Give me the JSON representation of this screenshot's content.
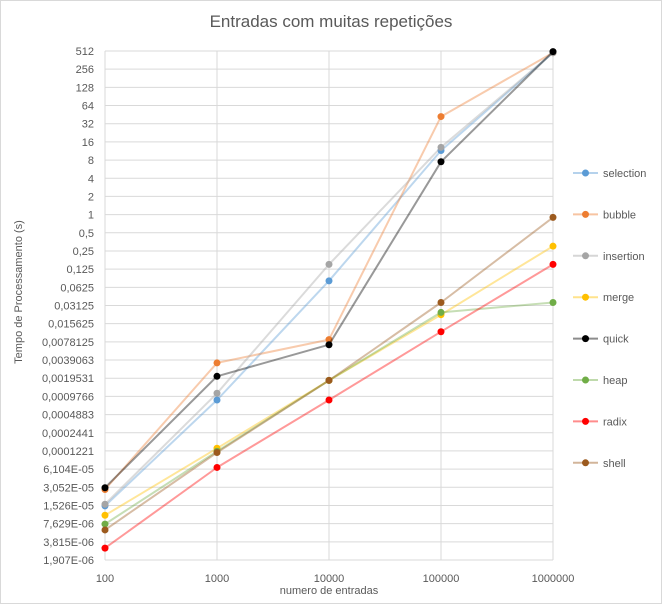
{
  "chart_data": {
    "type": "line",
    "title": "Entradas com muitas repetições",
    "xlabel": "numero de entradas",
    "ylabel": "Tempo de Processamento (s)",
    "x": [
      100,
      1000,
      10000,
      100000,
      1000000
    ],
    "x_tick_labels": [
      "100",
      "1000",
      "10000",
      "100000",
      "1000000"
    ],
    "x_scale": "log10",
    "y_scale": "log2",
    "ylim": [
      1.907e-06,
      512
    ],
    "y_tick_labels": [
      "512",
      "256",
      "128",
      "64",
      "32",
      "16",
      "8",
      "4",
      "2",
      "1",
      "0,5",
      "0,25",
      "0,125",
      "0,0625",
      "0,03125",
      "0,015625",
      "0,0078125",
      "0,0039063",
      "0,0019531",
      "0,0009766",
      "0,0004883",
      "0,0002441",
      "0,0001221",
      "6,104E-05",
      "3,052E-05",
      "1,526E-05",
      "7,629E-06",
      "3,815E-06",
      "1,907E-06"
    ],
    "grid": true,
    "legend_position": "right",
    "series": [
      {
        "name": "selection",
        "color": "#5b9bd5",
        "values": [
          1.5e-05,
          0.00085,
          0.08,
          11.5,
          480
        ]
      },
      {
        "name": "bubble",
        "color": "#ed7d31",
        "values": [
          2.8e-05,
          0.0035,
          0.0085,
          42,
          480
        ]
      },
      {
        "name": "insertion",
        "color": "#a5a5a5",
        "values": [
          1.6e-05,
          0.0011,
          0.15,
          13,
          480
        ]
      },
      {
        "name": "merge",
        "color": "#ffc000",
        "values": [
          1.05e-05,
          0.000135,
          0.0018,
          0.022,
          0.3
        ]
      },
      {
        "name": "quick",
        "color": "#000000",
        "values": [
          3e-05,
          0.0021,
          0.007,
          7.5,
          500
        ]
      },
      {
        "name": "heap",
        "color": "#70ad47",
        "values": [
          7.5e-06,
          0.00012,
          0.0018,
          0.024,
          0.035
        ]
      },
      {
        "name": "radix",
        "color": "#ff0000",
        "values": [
          3e-06,
          6.5e-05,
          0.00085,
          0.0115,
          0.15
        ]
      },
      {
        "name": "shell",
        "color": "#9c5a1e",
        "values": [
          6e-06,
          0.000115,
          0.0018,
          0.035,
          0.9
        ]
      }
    ]
  }
}
